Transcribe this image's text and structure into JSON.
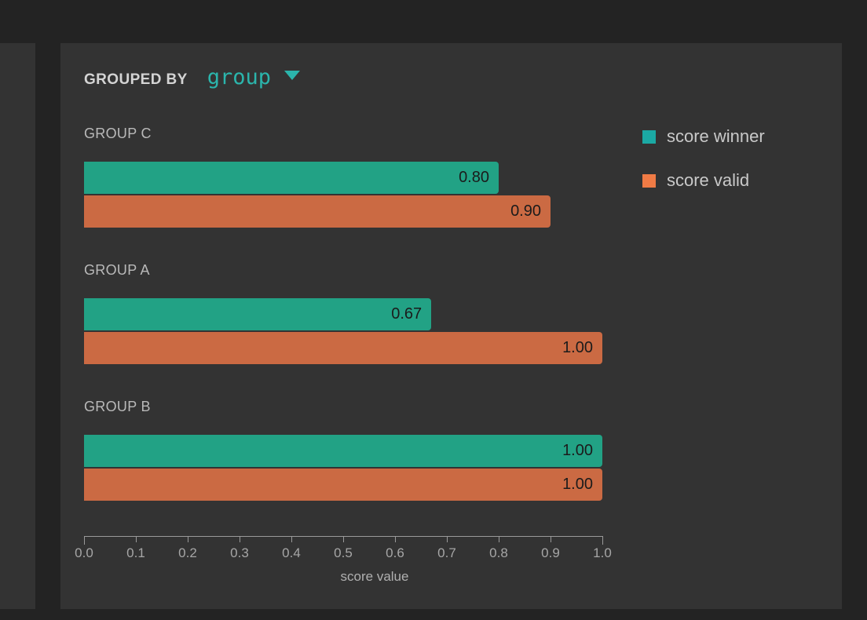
{
  "panel": {
    "grouped_by_label": "GROUPED BY",
    "grouped_by_value": "group"
  },
  "legend": {
    "position": "top-right",
    "items": [
      {
        "label": "score winner",
        "color": "#1ba9a4"
      },
      {
        "label": "score valid",
        "color": "#f07b45"
      }
    ]
  },
  "chart_data": {
    "type": "bar",
    "orientation": "horizontal",
    "grouped_by": "group",
    "categories": [
      "GROUP C",
      "GROUP A",
      "GROUP B"
    ],
    "series": [
      {
        "name": "score winner",
        "color": "#22a285",
        "values": [
          0.8,
          0.67,
          1.0
        ],
        "value_labels": [
          "0.80",
          "0.67",
          "1.00"
        ]
      },
      {
        "name": "score valid",
        "color": "#cb6a43",
        "values": [
          0.9,
          1.0,
          1.0
        ],
        "value_labels": [
          "0.90",
          "1.00",
          "1.00"
        ]
      }
    ],
    "xlabel": "score value",
    "xlim": [
      0,
      1
    ],
    "xtick_labels": [
      "0.0",
      "0.1",
      "0.2",
      "0.3",
      "0.4",
      "0.5",
      "0.6",
      "0.7",
      "0.8",
      "0.9",
      "1.0"
    ],
    "grid": false,
    "value_labels_inside_bars": true
  },
  "colors": {
    "page_background": "#232323",
    "panel_background": "#333333",
    "accent_teal": "#2bb5ac",
    "axis": "#9a9a9a",
    "bar_value_text": "#1b1b1b"
  }
}
